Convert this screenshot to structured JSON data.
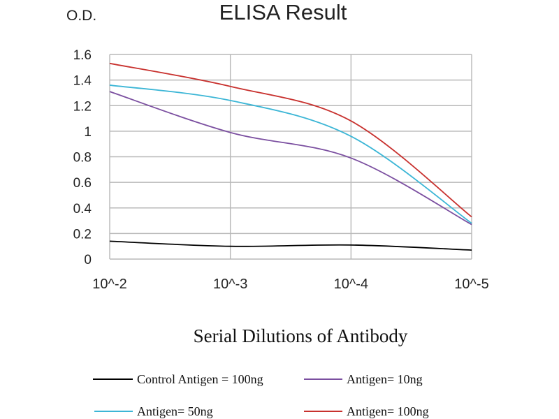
{
  "chart_data": {
    "type": "line",
    "title": "ELISA Result",
    "ylabel": "O.D.",
    "xlabel": "Serial Dilutions of Antibody",
    "categories": [
      "10^-2",
      "10^-3",
      "10^-4",
      "10^-5"
    ],
    "ylim": [
      0,
      1.6
    ],
    "yticks": [
      "0",
      "0.2",
      "0.4",
      "0.6",
      "0.8",
      "1",
      "1.2",
      "1.4",
      "1.6"
    ],
    "grid": true,
    "legend_position": "bottom",
    "series": [
      {
        "name": "Control Antigen = 100ng",
        "color": "#000000",
        "values": [
          0.14,
          0.1,
          0.11,
          0.07
        ]
      },
      {
        "name": "Antigen= 10ng",
        "color": "#7b4fa0",
        "values": [
          1.31,
          0.99,
          0.79,
          0.27
        ]
      },
      {
        "name": "Antigen= 50ng",
        "color": "#3cb6d6",
        "values": [
          1.36,
          1.24,
          0.96,
          0.28
        ]
      },
      {
        "name": "Antigen= 100ng",
        "color": "#c8312e",
        "values": [
          1.53,
          1.35,
          1.08,
          0.33
        ]
      }
    ]
  }
}
